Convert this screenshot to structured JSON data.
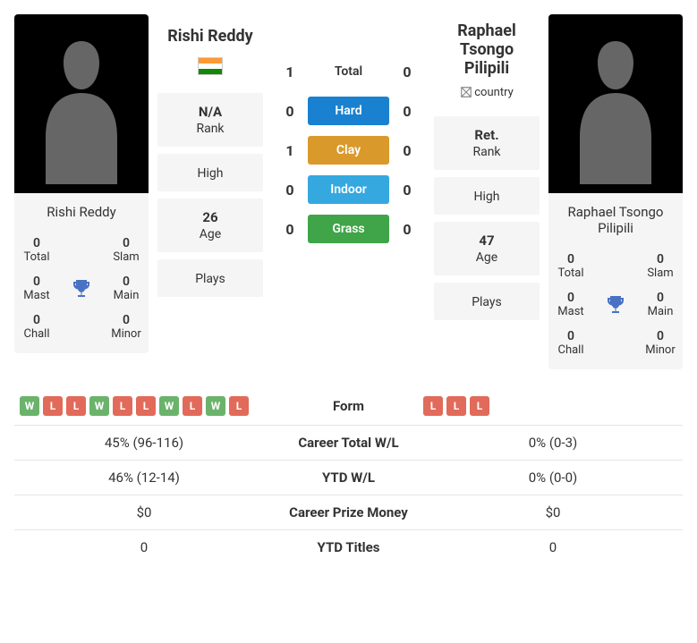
{
  "colors": {
    "win_badge": "#6bb36b",
    "loss_badge": "#e26a5a",
    "hard": "#1981d0",
    "clay": "#d99a2b",
    "indoor": "#35a8e0",
    "grass": "#3fa548",
    "trophy": "#4a72c4",
    "card_bg": "#f5f5f5",
    "border": "#e5e5e5"
  },
  "flag": {
    "saffron": "#ff9933",
    "white": "#ffffff",
    "green": "#138808"
  },
  "p1": {
    "name": "Rishi Reddy",
    "has_flag": true,
    "rank": "N/A",
    "high": "",
    "age": "26",
    "plays": "",
    "trophies": {
      "total_v": "0",
      "total_l": "Total",
      "slam_v": "0",
      "slam_l": "Slam",
      "mast_v": "0",
      "mast_l": "Mast",
      "main_v": "0",
      "main_l": "Main",
      "chall_v": "0",
      "chall_l": "Chall",
      "minor_v": "0",
      "minor_l": "Minor"
    }
  },
  "p2": {
    "name": "Raphael Tsongo Pilipili",
    "has_flag": false,
    "flag_placeholder": "country",
    "rank": "Ret.",
    "high": "",
    "age": "47",
    "plays": "",
    "trophies": {
      "total_v": "0",
      "total_l": "Total",
      "slam_v": "0",
      "slam_l": "Slam",
      "mast_v": "0",
      "mast_l": "Mast",
      "main_v": "0",
      "main_l": "Main",
      "chall_v": "0",
      "chall_l": "Chall",
      "minor_v": "0",
      "minor_l": "Minor"
    }
  },
  "labels": {
    "rank": "Rank",
    "high": "High",
    "age": "Age",
    "plays": "Plays",
    "total": "Total",
    "hard": "Hard",
    "clay": "Clay",
    "indoor": "Indoor",
    "grass": "Grass"
  },
  "h2h": {
    "total": {
      "p1": "1",
      "p2": "0"
    },
    "hard": {
      "p1": "0",
      "p2": "0"
    },
    "clay": {
      "p1": "1",
      "p2": "0"
    },
    "indoor": {
      "p1": "0",
      "p2": "0"
    },
    "grass": {
      "p1": "0",
      "p2": "0"
    }
  },
  "compare": {
    "form_label": "Form",
    "p1_form": [
      "W",
      "L",
      "L",
      "W",
      "L",
      "L",
      "W",
      "L",
      "W",
      "L"
    ],
    "p2_form": [
      "L",
      "L",
      "L"
    ],
    "rows": [
      {
        "label": "Career Total W/L",
        "p1": "45% (96-116)",
        "p2": "0% (0-3)"
      },
      {
        "label": "YTD W/L",
        "p1": "46% (12-14)",
        "p2": "0% (0-0)"
      },
      {
        "label": "Career Prize Money",
        "p1": "$0",
        "p2": "$0"
      },
      {
        "label": "YTD Titles",
        "p1": "0",
        "p2": "0"
      }
    ]
  }
}
